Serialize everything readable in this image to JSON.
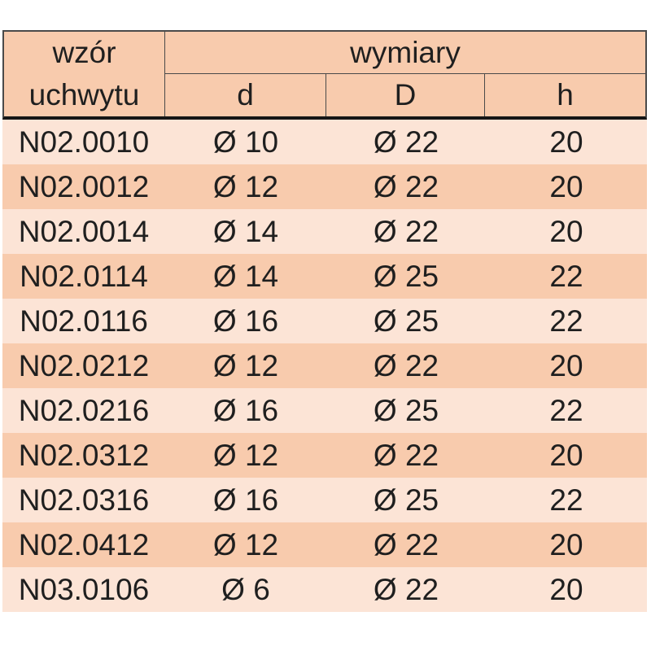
{
  "chart_data": {
    "type": "table",
    "corner_header": "wzór uchwytu",
    "corner_header_line1": "wzór",
    "corner_header_line2": "uchwytu",
    "group_header": "wymiary",
    "sub_headers": [
      "d",
      "D",
      "h"
    ],
    "columns": [
      "wzór uchwytu",
      "d",
      "D",
      "h"
    ],
    "rows": [
      [
        "N02.0010",
        "Ø 10",
        "Ø 22",
        "20"
      ],
      [
        "N02.0012",
        "Ø 12",
        "Ø 22",
        "20"
      ],
      [
        "N02.0014",
        "Ø 14",
        "Ø 22",
        "20"
      ],
      [
        "N02.0114",
        "Ø 14",
        "Ø 25",
        "22"
      ],
      [
        "N02.0116",
        "Ø 16",
        "Ø 25",
        "22"
      ],
      [
        "N02.0212",
        "Ø 12",
        "Ø 22",
        "20"
      ],
      [
        "N02.0216",
        "Ø 16",
        "Ø 25",
        "22"
      ],
      [
        "N02.0312",
        "Ø 12",
        "Ø 22",
        "20"
      ],
      [
        "N02.0316",
        "Ø 16",
        "Ø 25",
        "22"
      ],
      [
        "N02.0412",
        "Ø 12",
        "Ø 22",
        "20"
      ],
      [
        "N03.0106",
        "Ø 6",
        "Ø 22",
        "20"
      ]
    ]
  },
  "colors": {
    "page_bg": "#ffffff",
    "header_bg": "#f8cbad",
    "row_light": "#fce4d6",
    "row_dark": "#f8cbad",
    "border_thin": "#4a4a4a",
    "border_thick": "#161616",
    "text": "#1f1f1f"
  }
}
